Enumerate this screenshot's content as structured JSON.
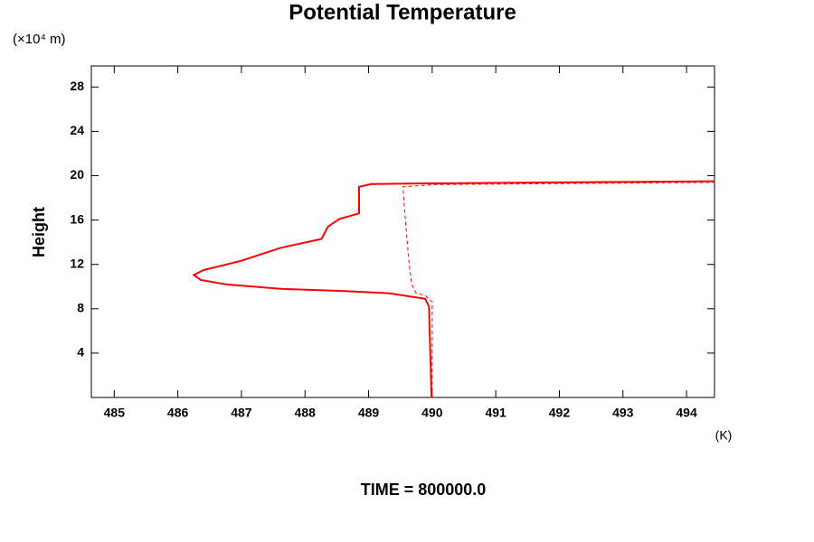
{
  "chart_data": {
    "type": "line",
    "title": "Potential Temperature",
    "y_unit": "(×10⁴ m)",
    "ylabel": "Height",
    "x_unit": "(K)",
    "annotation": "TIME = 800000.0",
    "xlim": [
      484.64,
      494.44
    ],
    "ylim": [
      0,
      29.9
    ],
    "xticks": [
      485,
      486,
      487,
      488,
      489,
      490,
      491,
      492,
      493,
      494
    ],
    "yticks": [
      4,
      8,
      12,
      16,
      20,
      24,
      28
    ],
    "series": [
      {
        "color": "#ff0000",
        "dashed": false,
        "x": [
          489.99,
          489.95,
          489.89,
          489.32,
          488.58,
          487.62,
          486.76,
          486.36,
          486.25,
          486.41,
          486.98,
          487.62,
          488.26,
          488.36,
          488.54,
          488.85,
          488.85,
          489.04,
          489.75,
          494.44
        ],
        "values": [
          0,
          8.2,
          8.9,
          9.4,
          9.6,
          9.8,
          10.2,
          10.6,
          11.05,
          11.5,
          12.3,
          13.5,
          14.3,
          15.4,
          16.1,
          16.6,
          19.0,
          19.25,
          19.3,
          19.5
        ]
      },
      {
        "color": "#ff0000",
        "dashed": true,
        "x": [
          490.0,
          490.0,
          489.89,
          489.75,
          489.68,
          489.64,
          489.58,
          489.54,
          490.03,
          494.44
        ],
        "values": [
          0,
          8.6,
          9.2,
          9.4,
          10.2,
          11.9,
          15.9,
          19.0,
          19.2,
          19.4
        ]
      }
    ]
  }
}
